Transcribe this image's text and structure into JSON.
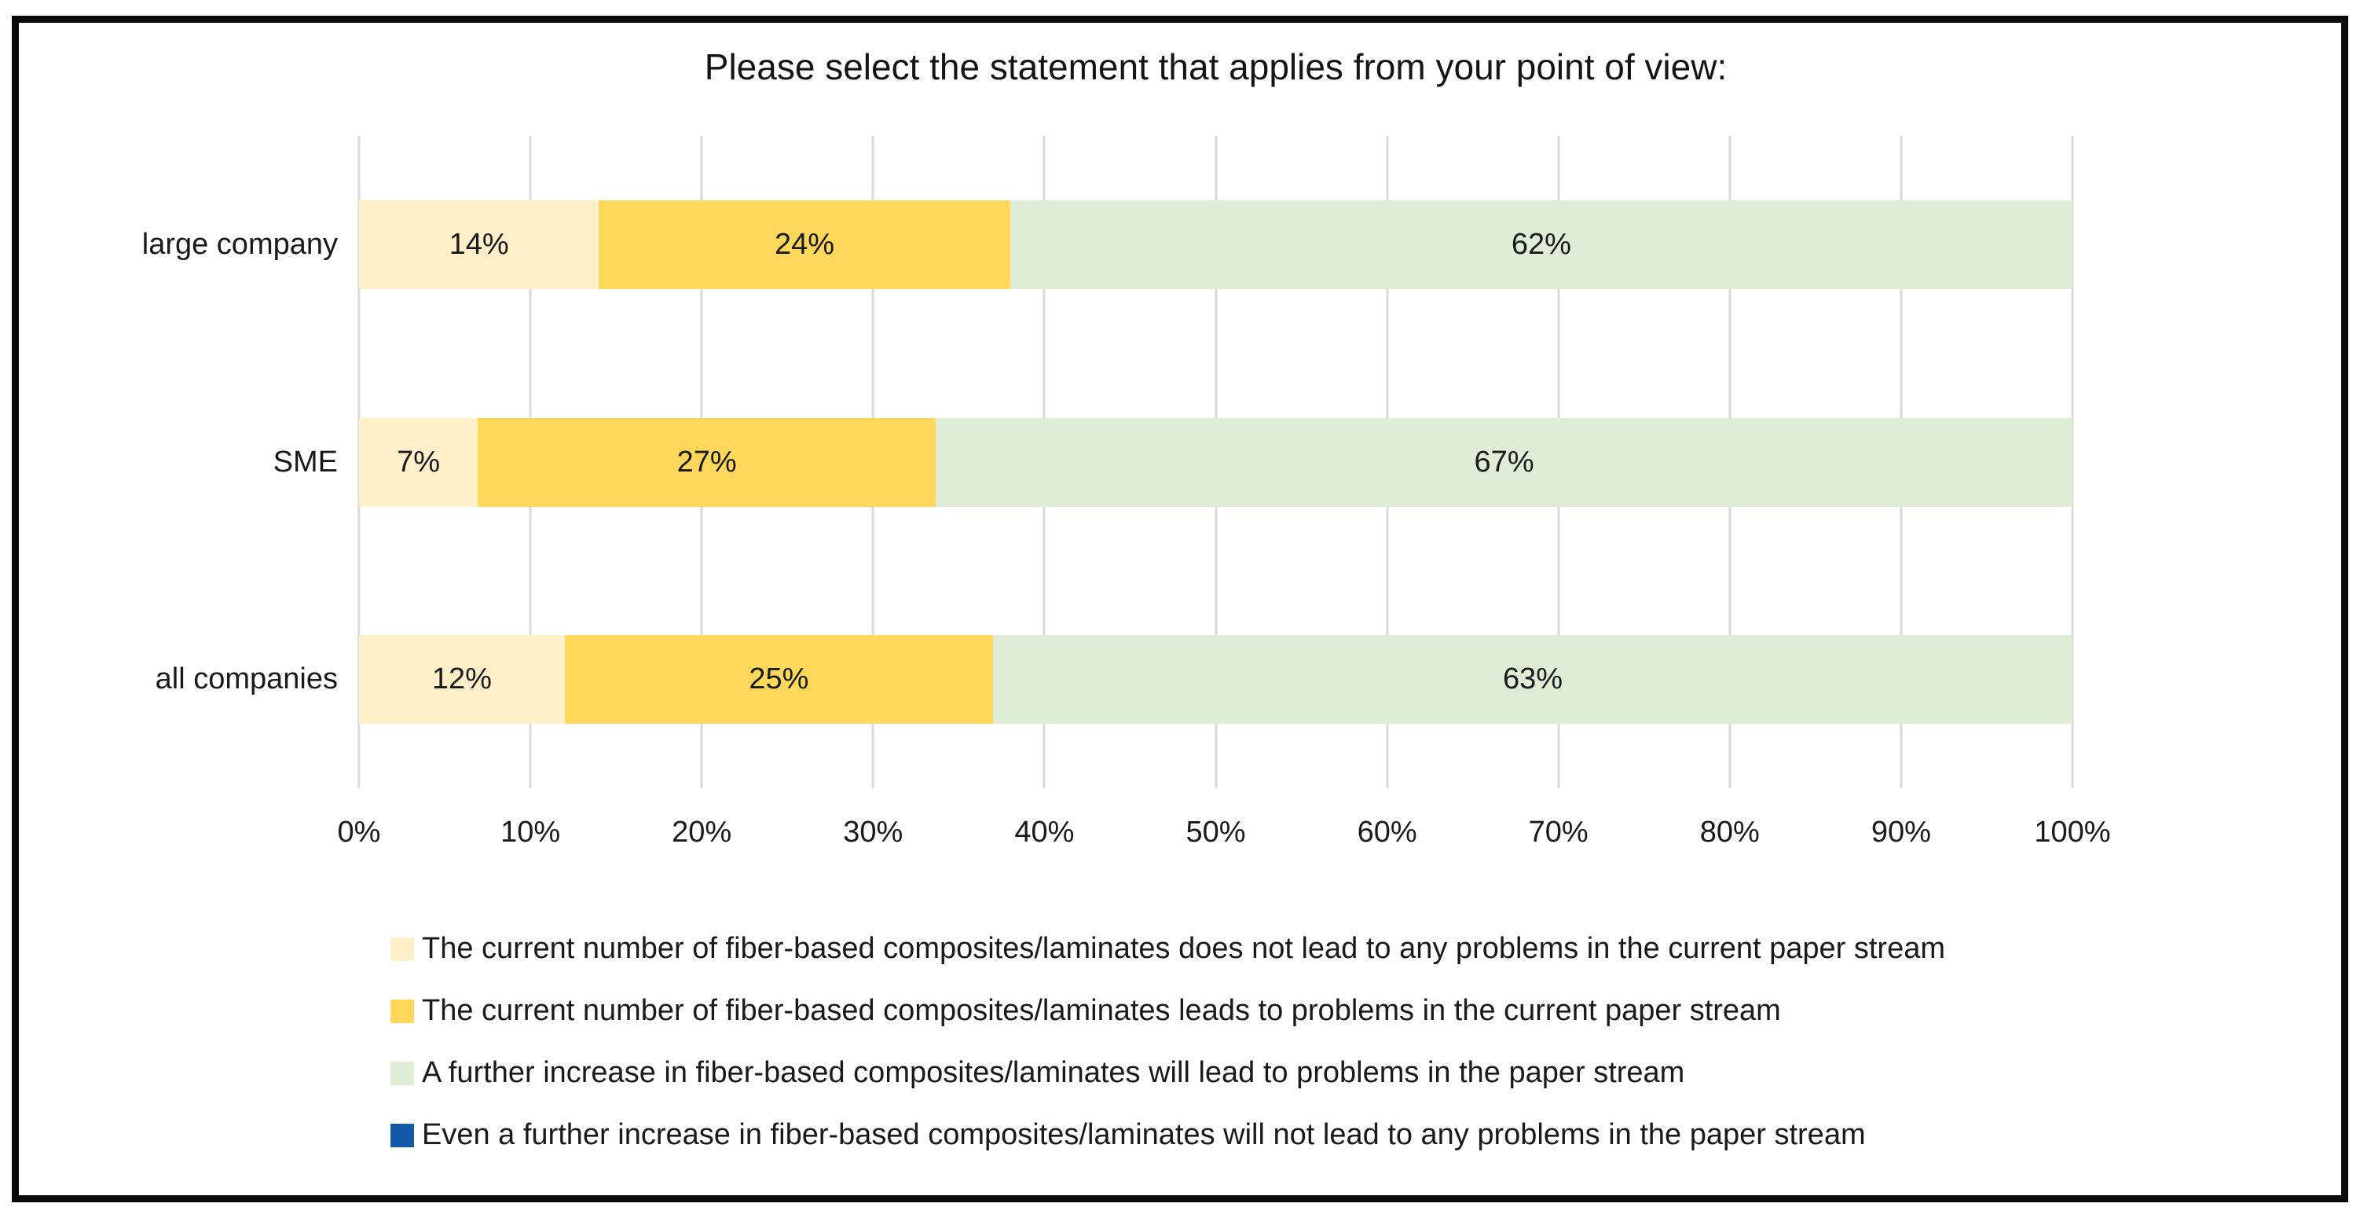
{
  "title": "Please select the statement that applies from your point of view:",
  "colors": {
    "cream": "#FFF0C9",
    "gold": "#FFD75A",
    "green": "#DFEDD6",
    "blue": "#1458A8",
    "gridline": "#D9D9D9",
    "frame_border": "#0A0A0A"
  },
  "chart_data": {
    "type": "bar",
    "orientation": "horizontal",
    "stacked": true,
    "title": "Please select the statement that applies from your point of view:",
    "categories": [
      "large company",
      "SME",
      "all companies"
    ],
    "series": [
      {
        "name": "The current number of fiber-based composites/laminates does not lead to any problems in the current paper stream",
        "color": "#FFF0C9",
        "values": [
          14,
          7,
          12
        ]
      },
      {
        "name": "The current number of fiber-based composites/laminates leads to problems in the current paper stream",
        "color": "#FFD75A",
        "values": [
          24,
          27,
          25
        ]
      },
      {
        "name": "A further increase in fiber-based composites/laminates will lead to problems in the paper stream",
        "color": "#DFEDD6",
        "values": [
          62,
          67,
          63
        ]
      },
      {
        "name": "Even a further increase in fiber-based composites/laminates will not lead to any problems in the paper stream",
        "color": "#1458A8",
        "values": [
          0,
          0,
          0
        ]
      }
    ],
    "value_suffix": "%",
    "x_ticks": [
      "0%",
      "10%",
      "20%",
      "30%",
      "40%",
      "50%",
      "60%",
      "70%",
      "80%",
      "90%",
      "100%"
    ],
    "xlim": [
      0,
      100
    ],
    "grid": true,
    "legend_position": "bottom"
  }
}
